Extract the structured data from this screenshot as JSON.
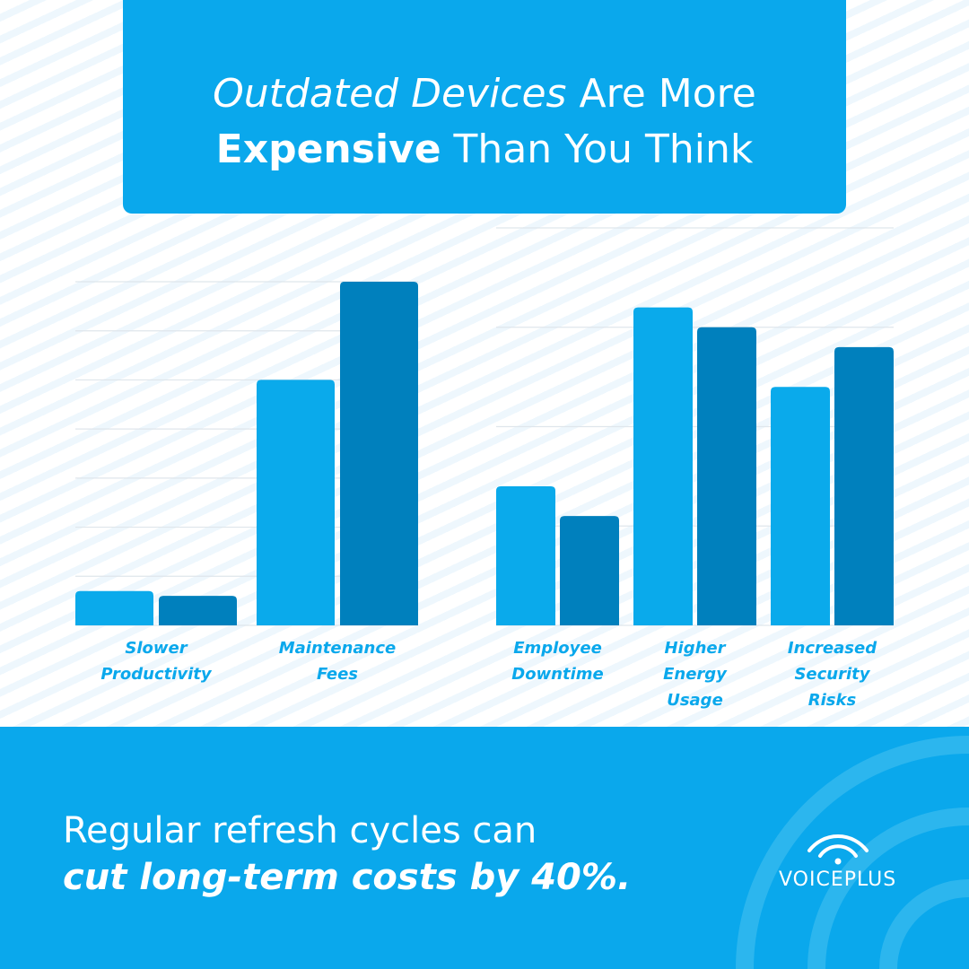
{
  "header": {
    "title_italic": "Outdated Devices",
    "title_part2": " Are More",
    "title_bold": "Expensive",
    "title_part3": " Than You Think"
  },
  "colors": {
    "accent": "#0aa8ec",
    "series_light": "#0aaaeb",
    "series_dark": "#0080bd"
  },
  "chart_data": [
    {
      "type": "bar",
      "categories": [
        "Slower Productivity",
        "Maintenance Fees"
      ],
      "series": [
        {
          "values": [
            0.7,
            5.0
          ]
        },
        {
          "values": [
            0.6,
            7.0
          ]
        }
      ],
      "ylim": [
        0,
        7
      ],
      "grid": true
    },
    {
      "type": "bar",
      "categories": [
        "Employee Downtime",
        "Higher Energy Usage",
        "Increased Security Risks"
      ],
      "series": [
        {
          "values": [
            1.4,
            3.2,
            2.4
          ]
        },
        {
          "values": [
            1.1,
            3.0,
            2.8
          ]
        }
      ],
      "ylim": [
        0,
        4
      ],
      "grid": true
    }
  ],
  "labels": [
    [
      "Slower",
      "Productivity"
    ],
    [
      "Maintenance",
      "Fees"
    ],
    [
      "Employee",
      "Downtime"
    ],
    [
      "Higher",
      "Energy",
      "Usage"
    ],
    [
      "Increased",
      "Security",
      "Risks"
    ]
  ],
  "footer": {
    "line1": "Regular refresh cycles can",
    "line2": "cut long-term costs by 40%."
  },
  "logo": {
    "text": "VOICEPLUS",
    "icon": "wifi-signal-icon"
  }
}
